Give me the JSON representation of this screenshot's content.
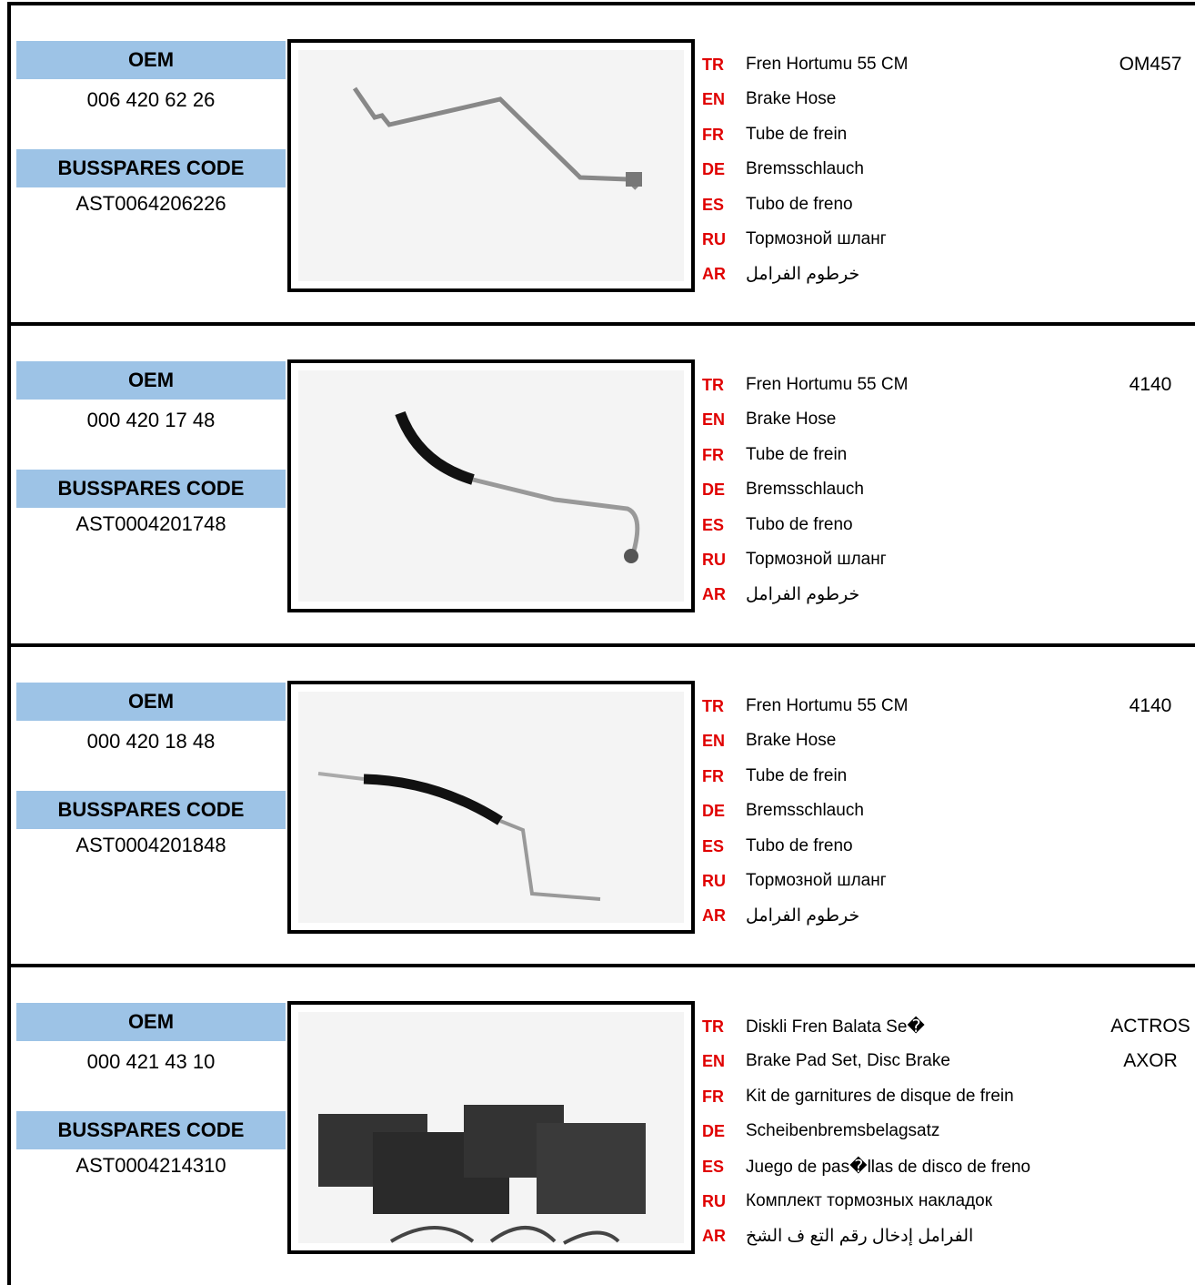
{
  "rows": [
    {
      "oem_label": "OEM",
      "oem": "006 420 62 26",
      "code_label": "BUSSPARES CODE",
      "code": "AST0064206226",
      "descriptions": [
        {
          "lang": "TR",
          "text": "Fren Hortumu  55 CM"
        },
        {
          "lang": "EN",
          "text": "Brake Hose"
        },
        {
          "lang": "FR",
          "text": "Tube de frein"
        },
        {
          "lang": "DE",
          "text": "Bremsschlauch"
        },
        {
          "lang": "ES",
          "text": "Tubo de freno"
        },
        {
          "lang": "RU",
          "text": "Тормозной шланг"
        },
        {
          "lang": "AR",
          "text": "خرطوم الفرامل"
        }
      ],
      "model": [
        "OM457"
      ]
    },
    {
      "oem_label": "OEM",
      "oem": "000 420 17 48",
      "code_label": "BUSSPARES CODE",
      "code": "AST0004201748",
      "descriptions": [
        {
          "lang": "TR",
          "text": "Fren Hortumu  55 CM"
        },
        {
          "lang": "EN",
          "text": "Brake Hose"
        },
        {
          "lang": "FR",
          "text": "Tube de frein"
        },
        {
          "lang": "DE",
          "text": "Bremsschlauch"
        },
        {
          "lang": "ES",
          "text": "Tubo de freno"
        },
        {
          "lang": "RU",
          "text": "Тормозной шланг"
        },
        {
          "lang": "AR",
          "text": "خرطوم الفرامل"
        }
      ],
      "model": [
        "4140"
      ]
    },
    {
      "oem_label": "OEM",
      "oem": "000 420 18 48",
      "code_label": "BUSSPARES CODE",
      "code": "AST0004201848",
      "descriptions": [
        {
          "lang": "TR",
          "text": "Fren Hortumu  55 CM"
        },
        {
          "lang": "EN",
          "text": "Brake Hose"
        },
        {
          "lang": "FR",
          "text": "Tube de frein"
        },
        {
          "lang": "DE",
          "text": "Bremsschlauch"
        },
        {
          "lang": "ES",
          "text": "Tubo de freno"
        },
        {
          "lang": "RU",
          "text": "Тормозной шланг"
        },
        {
          "lang": "AR",
          "text": "خرطوم الفرامل"
        }
      ],
      "model": [
        "4140"
      ]
    },
    {
      "oem_label": "OEM",
      "oem": "000 421 43 10",
      "code_label": "BUSSPARES CODE",
      "code": "AST0004214310",
      "descriptions": [
        {
          "lang": "TR",
          "text": "Diskli Fren Balata Se�"
        },
        {
          "lang": "EN",
          "text": "Brake Pad Set, Disc Brake"
        },
        {
          "lang": "FR",
          "text": "Kit de garnitures de disque de frein"
        },
        {
          "lang": "DE",
          "text": "Scheibenbremsbelagsatz"
        },
        {
          "lang": "ES",
          "text": "Juego de pas�llas de disco de freno"
        },
        {
          "lang": "RU",
          "text": "Комплект тормозных накладок"
        },
        {
          "lang": "AR",
          "text": "الفرامل إدخال رقم التع ف الشخ"
        }
      ],
      "model": [
        "ACTROS",
        "AXOR"
      ]
    }
  ]
}
